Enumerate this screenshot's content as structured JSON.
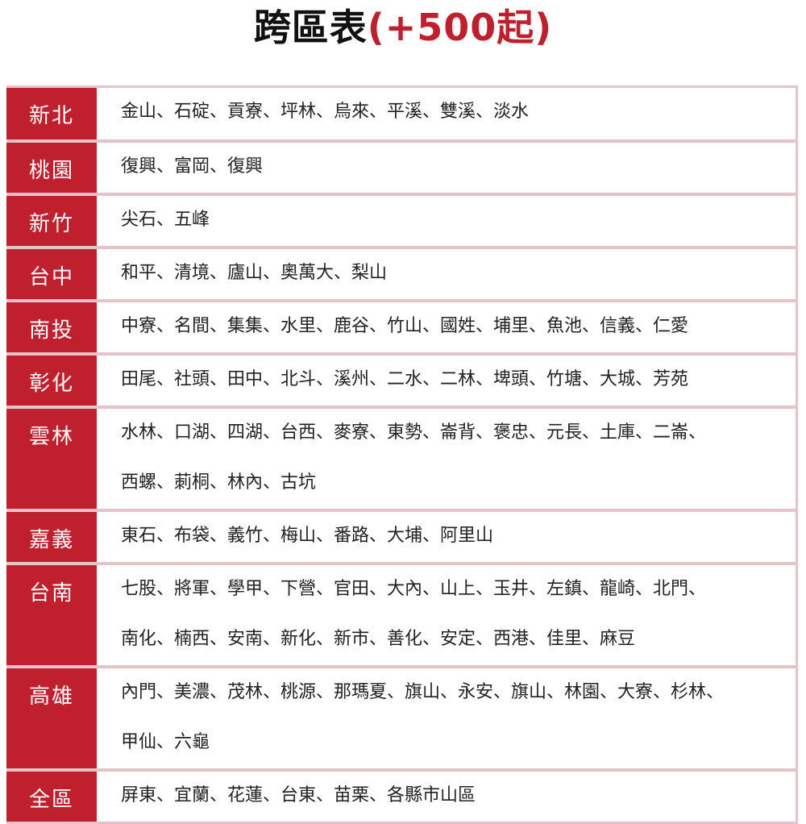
{
  "title": {
    "main": "跨區表",
    "note": "(+500起)"
  },
  "colors": {
    "accent": "#c0202e",
    "divider": "#e6c3c8"
  },
  "rows": [
    {
      "region": "新北",
      "lines": [
        "金山、石碇、貢寮、坪林、烏來、平溪、雙溪、淡水"
      ]
    },
    {
      "region": "桃園",
      "lines": [
        "復興、富岡、復興"
      ]
    },
    {
      "region": "新竹",
      "lines": [
        "尖石、五峰"
      ]
    },
    {
      "region": "台中",
      "lines": [
        "和平、清境、廬山、奧萬大、梨山"
      ]
    },
    {
      "region": "南投",
      "lines": [
        "中寮、名間、集集、水里、鹿谷、竹山、國姓、埔里、魚池、信義、仁愛"
      ]
    },
    {
      "region": "彰化",
      "lines": [
        "田尾、社頭、田中、北斗、溪州、二水、二林、埤頭、竹塘、大城、芳苑"
      ]
    },
    {
      "region": "雲林",
      "lines": [
        "水林、口湖、四湖、台西、麥寮、東勢、崙背、褒忠、元長、土庫、二崙、",
        "西螺、莿桐、林內、古坑"
      ]
    },
    {
      "region": "嘉義",
      "lines": [
        "東石、布袋、義竹、梅山、番路、大埔、阿里山"
      ]
    },
    {
      "region": "台南",
      "lines": [
        "七股、將軍、學甲、下營、官田、大內、山上、玉井、左鎮、龍崎、北門、",
        "南化、楠西、安南、新化、新市、善化、安定、西港、佳里、麻豆"
      ]
    },
    {
      "region": "高雄",
      "lines": [
        "內門、美濃、茂林、桃源、那瑪夏、旗山、永安、旗山、林園、大寮、杉林、",
        "甲仙、六龜"
      ]
    },
    {
      "region": "全區",
      "lines": [
        "屏東、宜蘭、花蓮、台東、苗栗、各縣市山區"
      ]
    }
  ]
}
